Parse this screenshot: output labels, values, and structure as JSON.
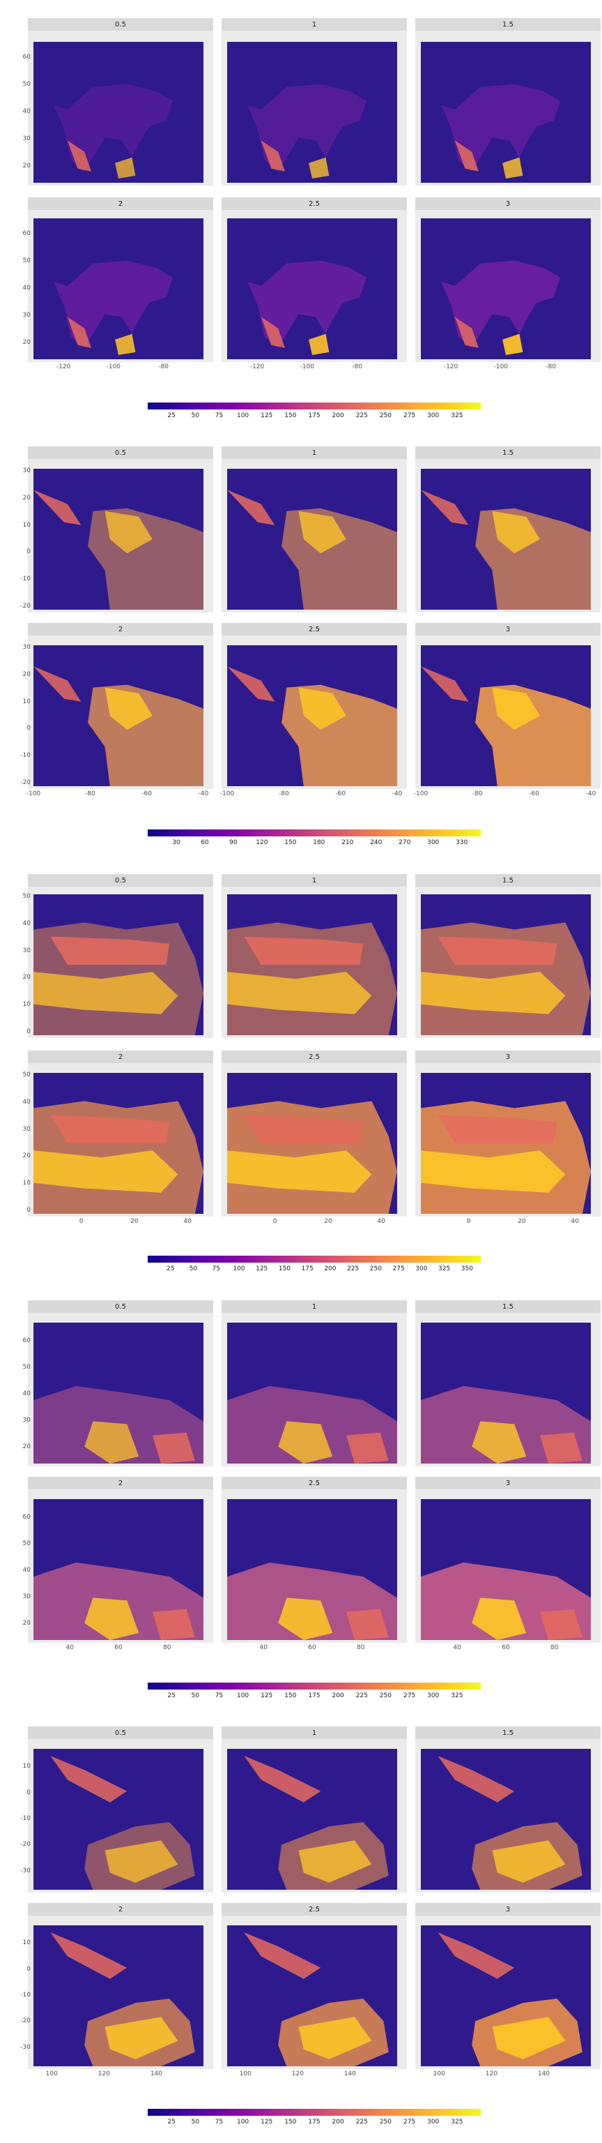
{
  "facet_labels": [
    "0.5",
    "1",
    "1.5",
    "2",
    "2.5",
    "3"
  ],
  "colors": {
    "scale": [
      "#0d0887",
      "#4b03a7",
      "#7d03a8",
      "#a82296",
      "#cb4679",
      "#e56b5d",
      "#f89441",
      "#fdc328",
      "#f0f921"
    ],
    "panel_bg": "#ebebeb",
    "strip_bg": "#d9d9d9",
    "ocean": "#2e1a8c"
  },
  "chart_data": [
    {
      "type": "heatmap",
      "region": "north_america",
      "facets": [
        "0.5",
        "1",
        "1.5",
        "2",
        "2.5",
        "3"
      ],
      "x_ticks": [
        "-120",
        "-100",
        "-80"
      ],
      "y_ticks": [
        "60",
        "50",
        "40",
        "30",
        "20"
      ],
      "xlim": [
        -132,
        -64
      ],
      "ylim": [
        14,
        66
      ],
      "legend_ticks": [
        "25",
        "50",
        "75",
        "100",
        "125",
        "150",
        "175",
        "200",
        "225",
        "250",
        "275",
        "300",
        "325"
      ],
      "legend_range": [
        0,
        350
      ],
      "legend_placement": "bottom",
      "grid": true
    },
    {
      "type": "heatmap",
      "region": "south_america",
      "facets": [
        "0.5",
        "1",
        "1.5",
        "2",
        "2.5",
        "3"
      ],
      "x_ticks": [
        "-100",
        "-80",
        "-60",
        "-40"
      ],
      "y_ticks": [
        "30",
        "20",
        "10",
        "0",
        "-10",
        "-20"
      ],
      "xlim": [
        -100,
        -40
      ],
      "ylim": [
        -21,
        31
      ],
      "legend_ticks": [
        "30",
        "60",
        "90",
        "120",
        "150",
        "180",
        "210",
        "240",
        "270",
        "300",
        "330"
      ],
      "legend_range": [
        0,
        350
      ],
      "legend_placement": "bottom",
      "grid": true
    },
    {
      "type": "heatmap",
      "region": "africa",
      "facets": [
        "0.5",
        "1",
        "1.5",
        "2",
        "2.5",
        "3"
      ],
      "x_ticks": [
        "0",
        "20",
        "40"
      ],
      "y_ticks": [
        "50",
        "40",
        "30",
        "20",
        "10",
        "0"
      ],
      "xlim": [
        -18,
        46
      ],
      "ylim": [
        -1,
        51
      ],
      "legend_ticks": [
        "25",
        "50",
        "75",
        "100",
        "125",
        "150",
        "175",
        "200",
        "225",
        "250",
        "275",
        "300",
        "325",
        "350"
      ],
      "legend_range": [
        0,
        365
      ],
      "legend_placement": "bottom",
      "grid": true
    },
    {
      "type": "heatmap",
      "region": "middle_east_asia",
      "facets": [
        "0.5",
        "1",
        "1.5",
        "2",
        "2.5",
        "3"
      ],
      "x_ticks": [
        "40",
        "60",
        "80"
      ],
      "y_ticks": [
        "60",
        "50",
        "40",
        "30",
        "20"
      ],
      "xlim": [
        25,
        95
      ],
      "ylim": [
        14,
        67
      ],
      "legend_ticks": [
        "25",
        "50",
        "75",
        "100",
        "125",
        "150",
        "175",
        "200",
        "225",
        "250",
        "275",
        "300",
        "325"
      ],
      "legend_range": [
        0,
        350
      ],
      "legend_placement": "bottom",
      "grid": true
    },
    {
      "type": "heatmap",
      "region": "oceania",
      "facets": [
        "0.5",
        "1",
        "1.5",
        "2",
        "2.5",
        "3"
      ],
      "x_ticks": [
        "100",
        "120",
        "140"
      ],
      "y_ticks": [
        "10",
        "0",
        "-10",
        "-20",
        "-30"
      ],
      "xlim": [
        93,
        158
      ],
      "ylim": [
        -37,
        17
      ],
      "legend_ticks": [
        "25",
        "50",
        "75",
        "100",
        "125",
        "150",
        "175",
        "200",
        "225",
        "250",
        "275",
        "300",
        "325"
      ],
      "legend_range": [
        0,
        350
      ],
      "legend_placement": "bottom",
      "grid": true
    }
  ]
}
